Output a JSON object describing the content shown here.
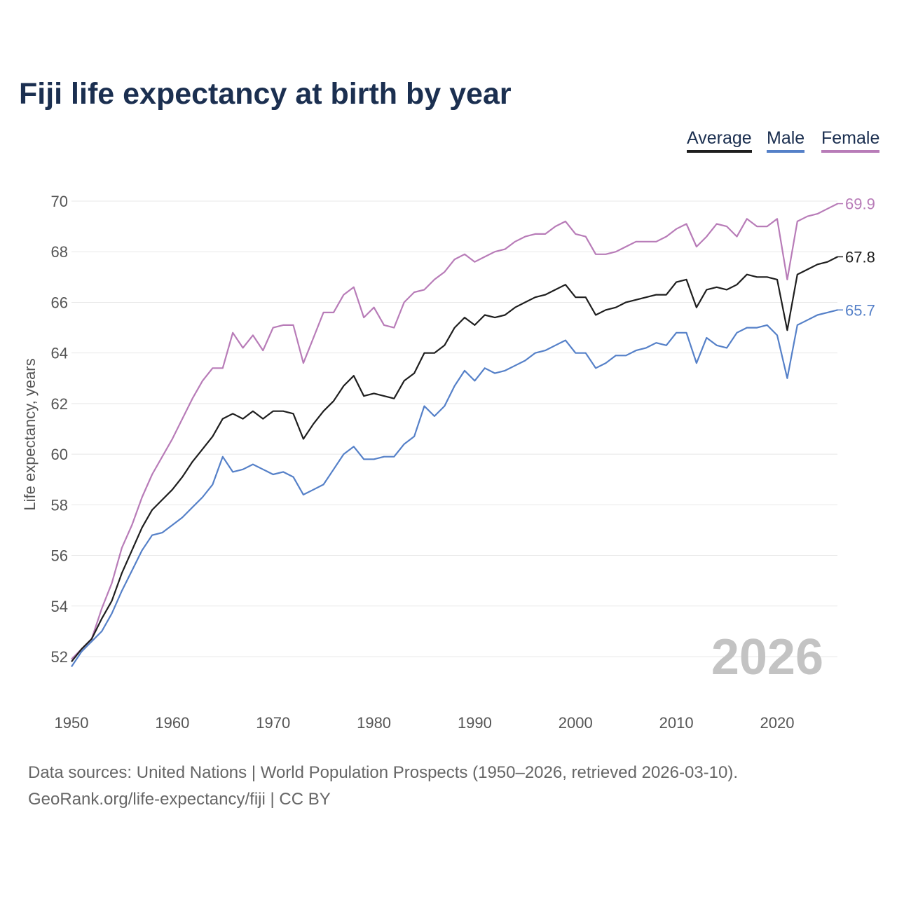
{
  "title": "Fiji life expectancy at birth by year",
  "legend": [
    {
      "label": "Average",
      "color": "#1e1e1e"
    },
    {
      "label": "Male",
      "color": "#5580c8"
    },
    {
      "label": "Female",
      "color": "#b87cb8"
    }
  ],
  "footer": {
    "line1": "Data sources: United Nations | World Population Prospects (1950–2026, retrieved 2026-03-10).",
    "line2": "GeoRank.org/life-expectancy/fiji | CC BY"
  },
  "chart_data": {
    "type": "line",
    "title": "Fiji life expectancy at birth by year",
    "ylabel": "Life expectancy, years",
    "xlabel": "",
    "xlim": [
      1950,
      2026
    ],
    "ylim": [
      50.9,
      70.3
    ],
    "x_ticks": [
      1950,
      1960,
      1970,
      1980,
      1990,
      2000,
      2010,
      2020
    ],
    "y_ticks": [
      52,
      54,
      56,
      58,
      60,
      62,
      64,
      66,
      68,
      70
    ],
    "grid": true,
    "legend_position": "top-right",
    "year_watermark": "2026",
    "x_start": 1950,
    "series": [
      {
        "name": "Female",
        "color": "#b87cb8",
        "end_label": "69.9",
        "values": [
          51.9,
          52.3,
          52.7,
          53.9,
          54.9,
          56.3,
          57.2,
          58.3,
          59.2,
          59.9,
          60.6,
          61.4,
          62.2,
          62.9,
          63.4,
          63.4,
          64.8,
          64.2,
          64.7,
          64.1,
          65.0,
          65.1,
          65.1,
          63.6,
          64.6,
          65.6,
          65.6,
          66.3,
          66.6,
          65.4,
          65.8,
          65.1,
          65.0,
          66.0,
          66.4,
          66.5,
          66.9,
          67.2,
          67.7,
          67.9,
          67.6,
          67.8,
          68.0,
          68.1,
          68.4,
          68.6,
          68.7,
          68.7,
          69.0,
          69.2,
          68.7,
          68.6,
          67.9,
          67.9,
          68.0,
          68.2,
          68.4,
          68.4,
          68.4,
          68.6,
          68.9,
          69.1,
          68.2,
          68.6,
          69.1,
          69.0,
          68.6,
          69.3,
          69.0,
          69.0,
          69.3,
          66.9,
          69.2,
          69.4,
          69.5,
          69.7,
          69.9
        ]
      },
      {
        "name": "Average",
        "color": "#1e1e1e",
        "end_label": "67.8",
        "values": [
          51.8,
          52.3,
          52.7,
          53.5,
          54.2,
          55.3,
          56.2,
          57.1,
          57.8,
          58.2,
          58.6,
          59.1,
          59.7,
          60.2,
          60.7,
          61.4,
          61.6,
          61.4,
          61.7,
          61.4,
          61.7,
          61.7,
          61.6,
          60.6,
          61.2,
          61.7,
          62.1,
          62.7,
          63.1,
          62.3,
          62.4,
          62.3,
          62.2,
          62.9,
          63.2,
          64.0,
          64.0,
          64.3,
          65.0,
          65.4,
          65.1,
          65.5,
          65.4,
          65.5,
          65.8,
          66.0,
          66.2,
          66.3,
          66.5,
          66.7,
          66.2,
          66.2,
          65.5,
          65.7,
          65.8,
          66.0,
          66.1,
          66.2,
          66.3,
          66.3,
          66.8,
          66.9,
          65.8,
          66.5,
          66.6,
          66.5,
          66.7,
          67.1,
          67.0,
          67.0,
          66.9,
          64.9,
          67.1,
          67.3,
          67.5,
          67.6,
          67.8
        ]
      },
      {
        "name": "Male",
        "color": "#5580c8",
        "end_label": "65.7",
        "values": [
          51.6,
          52.2,
          52.6,
          53.0,
          53.7,
          54.6,
          55.4,
          56.2,
          56.8,
          56.9,
          57.2,
          57.5,
          57.9,
          58.3,
          58.8,
          59.9,
          59.3,
          59.4,
          59.6,
          59.4,
          59.2,
          59.3,
          59.1,
          58.4,
          58.6,
          58.8,
          59.4,
          60.0,
          60.3,
          59.8,
          59.8,
          59.9,
          59.9,
          60.4,
          60.7,
          61.9,
          61.5,
          61.9,
          62.7,
          63.3,
          62.9,
          63.4,
          63.2,
          63.3,
          63.5,
          63.7,
          64.0,
          64.1,
          64.3,
          64.5,
          64.0,
          64.0,
          63.4,
          63.6,
          63.9,
          63.9,
          64.1,
          64.2,
          64.4,
          64.3,
          64.8,
          64.8,
          63.6,
          64.6,
          64.3,
          64.2,
          64.8,
          65.0,
          65.0,
          65.1,
          64.7,
          63.0,
          65.1,
          65.3,
          65.5,
          65.6,
          65.7
        ]
      }
    ]
  }
}
